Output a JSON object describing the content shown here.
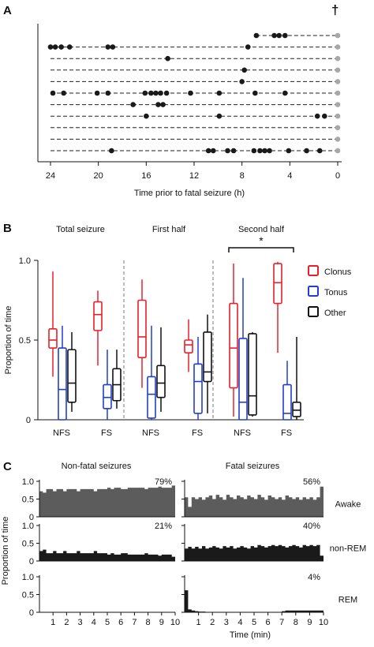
{
  "colors": {
    "dot": "#1a1a1a",
    "final": "#a8a8a8",
    "clonus": "#e8202a",
    "tonus": "#1f3fd0",
    "other": "#111111",
    "area": "#5c5c5c",
    "dark": "#1a1a1a"
  },
  "panelA": {
    "letter": "A",
    "dagger": "†",
    "xlabel": "Time prior to fatal seizure (h)",
    "xticks": [
      "24",
      "20",
      "16",
      "12",
      "8",
      "4",
      "0"
    ],
    "chart_data": {
      "type": "scatter",
      "x_reversed": true,
      "xlim": [
        0,
        24.5
      ],
      "rows": [
        {
          "start": 6.8,
          "events": [
            6.8,
            5.3,
            4.9,
            4.4,
            0.0
          ]
        },
        {
          "start": 24.0,
          "events": [
            24.0,
            23.6,
            23.1,
            22.4,
            19.2,
            18.8,
            7.5,
            0.0
          ]
        },
        {
          "start": 24.0,
          "events": [
            14.2,
            0.0
          ]
        },
        {
          "start": 24.0,
          "events": [
            7.8,
            0.0
          ]
        },
        {
          "start": 24.0,
          "events": [
            8.0,
            0.0
          ]
        },
        {
          "start": 24.0,
          "events": [
            23.8,
            22.9,
            20.1,
            19.2,
            16.1,
            15.6,
            15.2,
            14.8,
            14.3,
            12.3,
            9.9,
            6.9,
            4.4,
            0.0
          ]
        },
        {
          "start": 24.0,
          "events": [
            17.1,
            15.0,
            14.6,
            0.0
          ]
        },
        {
          "start": 24.0,
          "events": [
            16.0,
            9.9,
            1.7,
            1.1,
            0.0
          ]
        },
        {
          "start": 24.0,
          "events": [
            0.0
          ]
        },
        {
          "start": 24.0,
          "events": [
            0.0
          ]
        },
        {
          "start": 24.0,
          "events": [
            18.9,
            10.8,
            10.4,
            9.2,
            8.7,
            7.0,
            6.5,
            6.1,
            5.7,
            4.1,
            2.6,
            1.5,
            0.0
          ]
        }
      ]
    }
  },
  "panelB": {
    "letter": "B",
    "ylabel": "Proportion of time",
    "yticks": [
      "0",
      "0.5",
      "1.0"
    ],
    "sections": [
      "Total seizure",
      "First half",
      "Second half"
    ],
    "groups": [
      "NFS",
      "FS"
    ],
    "star": "*",
    "legend": [
      "Clonus",
      "Tonus",
      "Other"
    ],
    "chart_data": {
      "type": "box",
      "ylim": [
        0,
        1
      ],
      "boxes": [
        [
          [
            [
              0.93,
              0.57,
              0.5,
              0.45,
              0.27
            ],
            [
              0.59,
              0.45,
              0.19,
              0.0,
              0.0
            ],
            [
              0.55,
              0.44,
              0.23,
              0.11,
              0.05
            ]
          ],
          [
            [
              0.81,
              0.74,
              0.66,
              0.56,
              0.34
            ],
            [
              0.44,
              0.22,
              0.14,
              0.07,
              0.0
            ],
            [
              0.44,
              0.32,
              0.22,
              0.12,
              0.07
            ]
          ]
        ],
        [
          [
            [
              0.88,
              0.75,
              0.52,
              0.39,
              0.2
            ],
            [
              0.59,
              0.27,
              0.16,
              0.01,
              0.0
            ],
            [
              0.58,
              0.34,
              0.23,
              0.14,
              0.05
            ]
          ],
          [
            [
              0.63,
              0.5,
              0.47,
              0.42,
              0.3
            ],
            [
              0.52,
              0.35,
              0.24,
              0.04,
              0.0
            ],
            [
              0.66,
              0.55,
              0.3,
              0.24,
              0.04
            ]
          ]
        ],
        [
          [
            [
              0.98,
              0.73,
              0.45,
              0.2,
              0.02
            ],
            [
              0.89,
              0.51,
              0.11,
              0.0,
              0.0
            ],
            [
              0.55,
              0.54,
              0.15,
              0.03,
              0.02
            ]
          ],
          [
            [
              0.99,
              0.98,
              0.86,
              0.73,
              0.42
            ],
            [
              0.37,
              0.22,
              0.04,
              0.0,
              0.0
            ],
            [
              0.52,
              0.11,
              0.06,
              0.02,
              0.0
            ]
          ]
        ]
      ]
    }
  },
  "panelC": {
    "letter": "C",
    "titles": [
      "Non-fatal seizures",
      "Fatal seizures"
    ],
    "ylabel": "Proportion of time",
    "xlabel": "Time (min)",
    "yticks": [
      "0",
      "0.5",
      "1.0"
    ],
    "xticks": [
      "1",
      "2",
      "3",
      "4",
      "5",
      "6",
      "7",
      "8",
      "9",
      "10"
    ],
    "rowlabels": [
      "Awake",
      "non-REM",
      "REM"
    ],
    "chart_data": {
      "type": "area",
      "xlim": [
        0,
        10
      ],
      "ylim": [
        0,
        1
      ],
      "rows": [
        {
          "state": "Awake",
          "nonfatal": {
            "percent": "79%",
            "values": [
              0.72,
              0.68,
              0.78,
              0.78,
              0.72,
              0.78,
              0.78,
              0.72,
              0.78,
              0.78,
              0.78,
              0.72,
              0.78,
              0.78,
              0.78,
              0.78,
              0.72,
              0.78,
              0.78,
              0.78,
              0.82,
              0.78,
              0.82,
              0.82,
              0.78,
              0.78,
              0.82,
              0.82,
              0.82,
              0.82,
              0.82,
              0.78,
              0.82,
              0.82,
              0.82,
              0.85,
              0.82,
              0.82,
              0.82,
              0.88
            ]
          },
          "fatal": {
            "percent": "56%",
            "values": [
              0.55,
              0.28,
              0.55,
              0.5,
              0.55,
              0.48,
              0.55,
              0.6,
              0.5,
              0.62,
              0.55,
              0.48,
              0.62,
              0.55,
              0.5,
              0.6,
              0.55,
              0.5,
              0.6,
              0.55,
              0.5,
              0.62,
              0.55,
              0.48,
              0.6,
              0.55,
              0.5,
              0.55,
              0.48,
              0.6,
              0.55,
              0.5,
              0.55,
              0.48,
              0.55,
              0.5,
              0.55,
              0.48,
              0.55,
              0.85
            ]
          }
        },
        {
          "state": "non-REM",
          "nonfatal": {
            "percent": "21%",
            "values": [
              0.28,
              0.32,
              0.22,
              0.22,
              0.28,
              0.22,
              0.22,
              0.28,
              0.22,
              0.22,
              0.22,
              0.28,
              0.22,
              0.22,
              0.22,
              0.22,
              0.28,
              0.22,
              0.22,
              0.22,
              0.18,
              0.22,
              0.18,
              0.18,
              0.22,
              0.22,
              0.18,
              0.18,
              0.18,
              0.18,
              0.18,
              0.22,
              0.18,
              0.18,
              0.18,
              0.15,
              0.18,
              0.18,
              0.18,
              0.12
            ]
          },
          "fatal": {
            "percent": "40%",
            "values": [
              0.35,
              0.4,
              0.35,
              0.4,
              0.35,
              0.42,
              0.35,
              0.38,
              0.42,
              0.38,
              0.35,
              0.42,
              0.38,
              0.42,
              0.35,
              0.38,
              0.42,
              0.38,
              0.35,
              0.42,
              0.38,
              0.45,
              0.42,
              0.38,
              0.42,
              0.45,
              0.42,
              0.45,
              0.42,
              0.38,
              0.42,
              0.45,
              0.42,
              0.38,
              0.45,
              0.42,
              0.45,
              0.42,
              0.45,
              0.15
            ]
          }
        },
        {
          "state": "REM",
          "nonfatal": {
            "percent": "",
            "values": [
              0.0,
              0.0,
              0.0,
              0.0,
              0.0,
              0.0,
              0.0,
              0.0,
              0.0,
              0.0,
              0.0,
              0.0,
              0.0,
              0.0,
              0.0,
              0.0,
              0.0,
              0.0,
              0.0,
              0.0,
              0.0,
              0.0,
              0.0,
              0.0,
              0.0,
              0.0,
              0.0,
              0.0,
              0.0,
              0.0,
              0.0,
              0.0,
              0.0,
              0.0,
              0.0,
              0.0,
              0.0,
              0.0,
              0.0,
              0.0
            ]
          },
          "fatal": {
            "percent": "4%",
            "values": [
              0.62,
              0.08,
              0.05,
              0.03,
              0.02,
              0.02,
              0.0,
              0.0,
              0.0,
              0.0,
              0.0,
              0.0,
              0.0,
              0.0,
              0.0,
              0.0,
              0.0,
              0.0,
              0.0,
              0.0,
              0.0,
              0.0,
              0.0,
              0.0,
              0.0,
              0.0,
              0.0,
              0.0,
              0.03,
              0.05,
              0.05,
              0.05,
              0.05,
              0.05,
              0.05,
              0.05,
              0.05,
              0.05,
              0.05,
              0.05
            ]
          }
        }
      ]
    }
  }
}
